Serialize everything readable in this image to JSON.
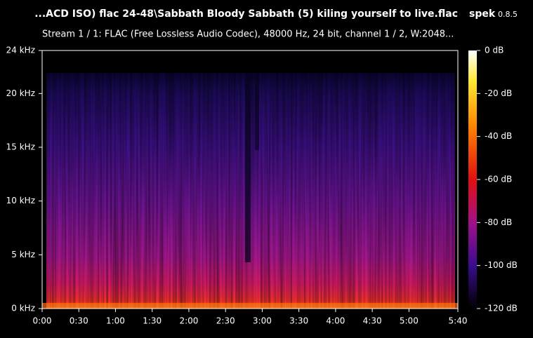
{
  "chart_data": {
    "type": "spectrogram",
    "title": "...ACD ISO) flac 24-48\\Sabbath Bloody Sabbath (5) kiling yourself to live.flac",
    "app_name": "spek",
    "app_version": "0.8.5",
    "subtitle": "Stream 1 / 1: FLAC (Free Lossless Audio Codec), 48000 Hz, 24 bit, channel 1 / 2, W:2048...",
    "xlim": [
      0,
      340
    ],
    "xticks": [
      {
        "value": 0,
        "label": "0:00"
      },
      {
        "value": 30,
        "label": "0:30"
      },
      {
        "value": 60,
        "label": "1:00"
      },
      {
        "value": 90,
        "label": "1:30"
      },
      {
        "value": 120,
        "label": "2:00"
      },
      {
        "value": 150,
        "label": "2:30"
      },
      {
        "value": 180,
        "label": "3:00"
      },
      {
        "value": 210,
        "label": "3:30"
      },
      {
        "value": 240,
        "label": "4:00"
      },
      {
        "value": 270,
        "label": "4:30"
      },
      {
        "value": 300,
        "label": "5:00"
      },
      {
        "value": 340,
        "label": "5:40"
      }
    ],
    "ylim": [
      0,
      24
    ],
    "yticks": [
      {
        "value": 0,
        "label": "0 kHz"
      },
      {
        "value": 5,
        "label": "5 kHz"
      },
      {
        "value": 10,
        "label": "10 kHz"
      },
      {
        "value": 15,
        "label": "15 kHz"
      },
      {
        "value": 20,
        "label": "20 kHz"
      },
      {
        "value": 24,
        "label": "24 kHz"
      }
    ],
    "zlim": [
      -120,
      0
    ],
    "zticks": [
      {
        "value": 0,
        "label": "0 dB"
      },
      {
        "value": -20,
        "label": "-20 dB"
      },
      {
        "value": -40,
        "label": "-40 dB"
      },
      {
        "value": -60,
        "label": "-60 dB"
      },
      {
        "value": -80,
        "label": "-80 dB"
      },
      {
        "value": -100,
        "label": "-100 dB"
      },
      {
        "value": -120,
        "label": "-120 dB"
      }
    ]
  }
}
